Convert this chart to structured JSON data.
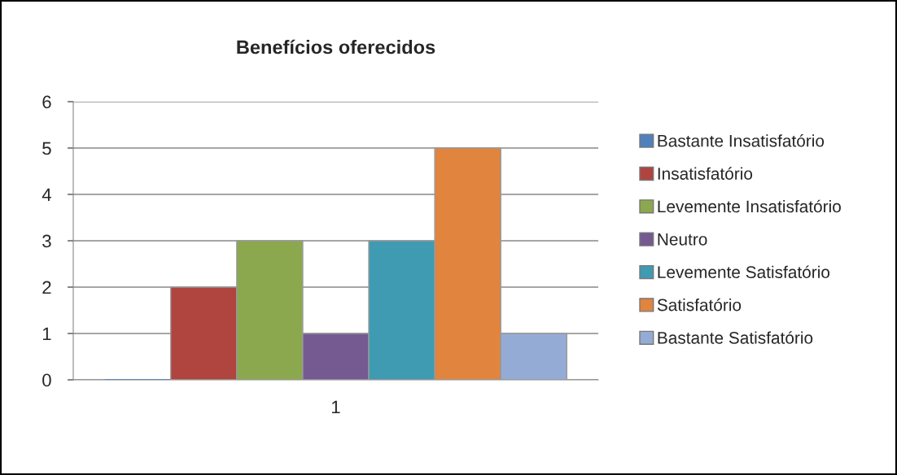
{
  "chart_data": {
    "type": "bar",
    "title": "Benefícios oferecidos",
    "categories": [
      "1"
    ],
    "series": [
      {
        "name": "Bastante Insatisfatório",
        "color": "#4f81bd",
        "values": [
          0
        ]
      },
      {
        "name": "Insatisfatório",
        "color": "#b0443f",
        "values": [
          2
        ]
      },
      {
        "name": "Levemente Insatisfatório",
        "color": "#8ba84e",
        "values": [
          3
        ]
      },
      {
        "name": "Neutro",
        "color": "#745a91",
        "values": [
          1
        ]
      },
      {
        "name": "Levemente Satisfatório",
        "color": "#3e9bb2",
        "values": [
          3
        ]
      },
      {
        "name": "Satisfatório",
        "color": "#e0843e",
        "values": [
          5
        ]
      },
      {
        "name": "Bastante Satisfatório",
        "color": "#94acd5",
        "values": [
          1
        ]
      }
    ],
    "ylim": [
      0,
      6
    ],
    "yticks": [
      0,
      1,
      2,
      3,
      4,
      5,
      6
    ],
    "grid": "y",
    "legend": "right"
  }
}
